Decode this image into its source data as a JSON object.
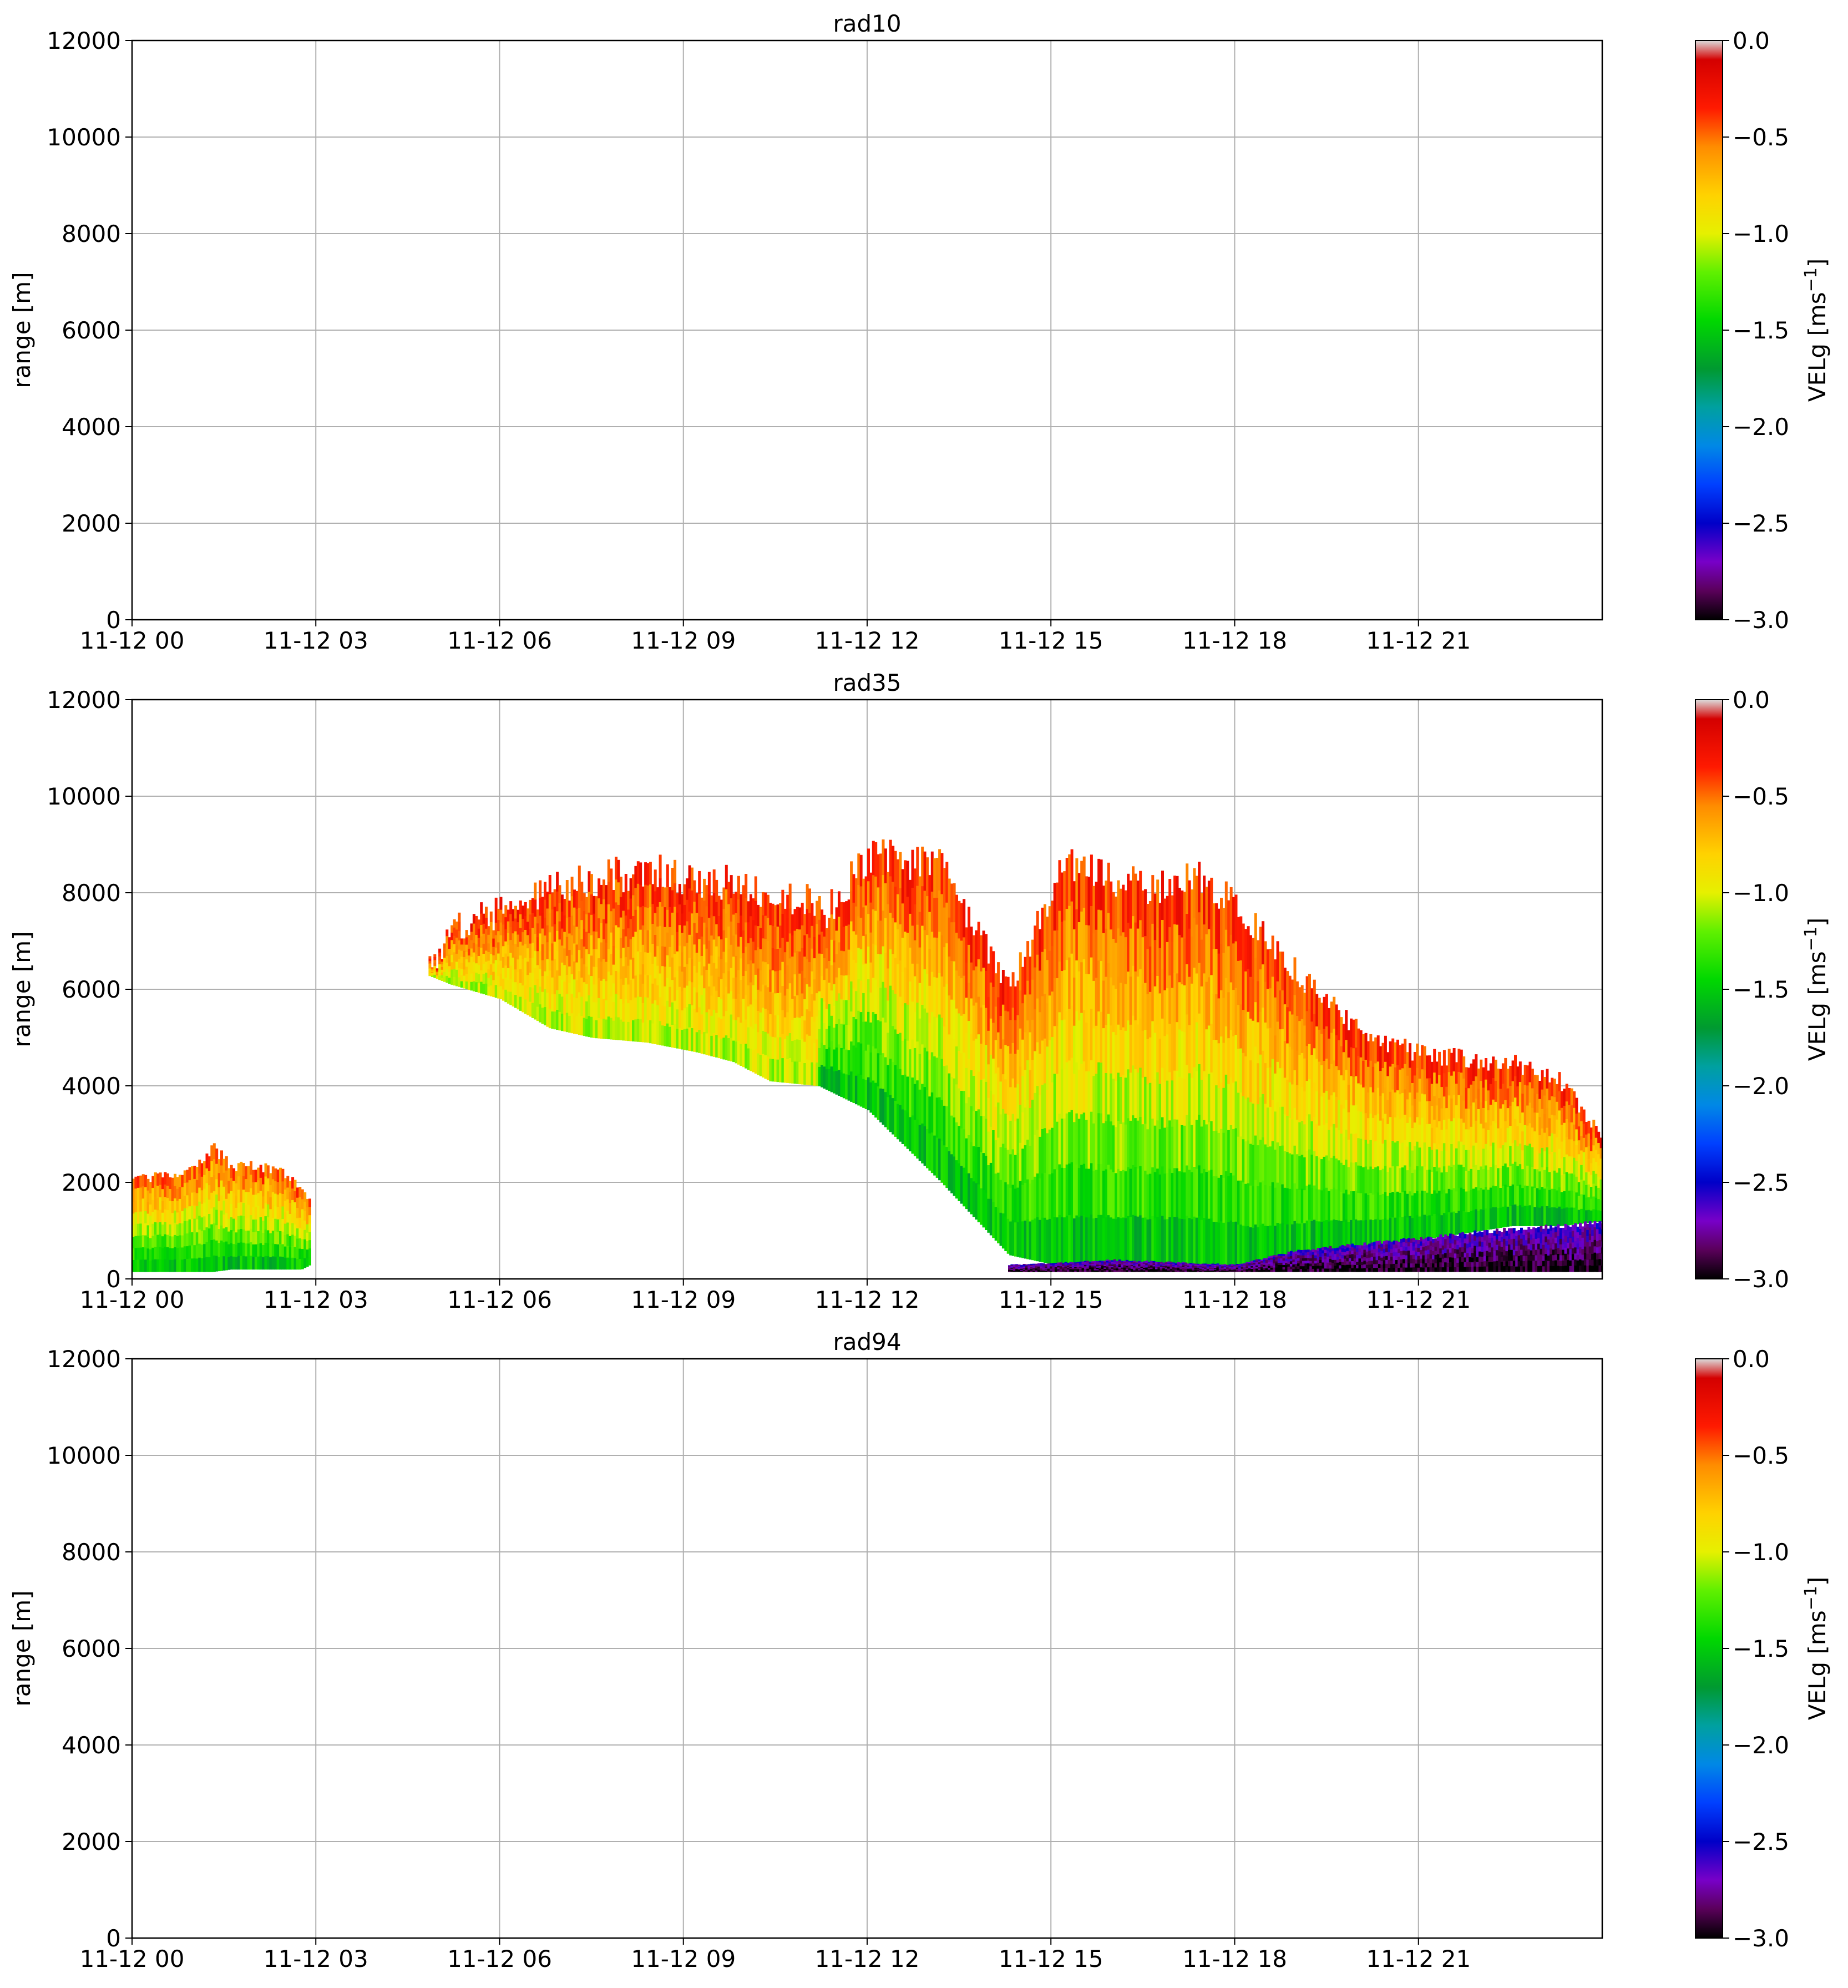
{
  "figure": {
    "colorbar": {
      "label": "VELg [ms",
      "label_sup": "−1",
      "label_end": "]",
      "range": [
        -3.0,
        0.0
      ],
      "ticks": [
        "0.0",
        "−0.5",
        "−1.0",
        "−1.5",
        "−2.0",
        "−2.5",
        "−3.0"
      ],
      "tick_values": [
        0.0,
        -0.5,
        -1.0,
        -1.5,
        -2.0,
        -2.5,
        -3.0
      ],
      "colormap": [
        {
          "v": 0.0,
          "c": "#dcdcdc"
        },
        {
          "v": -0.1,
          "c": "#d40000"
        },
        {
          "v": -0.35,
          "c": "#ff1a00"
        },
        {
          "v": -0.55,
          "c": "#ff8c00"
        },
        {
          "v": -0.8,
          "c": "#ffd200"
        },
        {
          "v": -1.0,
          "c": "#e6f000"
        },
        {
          "v": -1.2,
          "c": "#60f000"
        },
        {
          "v": -1.45,
          "c": "#00d800"
        },
        {
          "v": -1.7,
          "c": "#009a30"
        },
        {
          "v": -1.9,
          "c": "#00a0a0"
        },
        {
          "v": -2.1,
          "c": "#0088e6"
        },
        {
          "v": -2.3,
          "c": "#0040ff"
        },
        {
          "v": -2.5,
          "c": "#0000c8"
        },
        {
          "v": -2.7,
          "c": "#7800c8"
        },
        {
          "v": -2.85,
          "c": "#5a005a"
        },
        {
          "v": -3.0,
          "c": "#000000"
        }
      ]
    }
  },
  "chart_data": [
    {
      "type": "heatmap",
      "title": "rad10",
      "xlabel": "",
      "ylabel": "range [m]",
      "xlim_hours": [
        0,
        24
      ],
      "ylim": [
        0,
        12000
      ],
      "x_ticks": [
        0,
        3,
        6,
        9,
        12,
        15,
        18,
        21
      ],
      "x_tick_labels": [
        "11-12 00",
        "11-12 03",
        "11-12 06",
        "11-12 09",
        "11-12 12",
        "11-12 15",
        "11-12 18",
        "11-12 21"
      ],
      "y_ticks": [
        0,
        2000,
        4000,
        6000,
        8000,
        10000,
        12000
      ],
      "y_tick_labels": [
        "0",
        "2000",
        "4000",
        "6000",
        "8000",
        "10000",
        "12000"
      ],
      "grid": true,
      "has_data": false,
      "regions": []
    },
    {
      "type": "heatmap",
      "title": "rad35",
      "xlabel": "",
      "ylabel": "range [m]",
      "xlim_hours": [
        0,
        24
      ],
      "ylim": [
        0,
        12000
      ],
      "x_ticks": [
        0,
        3,
        6,
        9,
        12,
        15,
        18,
        21
      ],
      "x_tick_labels": [
        "11-12 00",
        "11-12 03",
        "11-12 06",
        "11-12 09",
        "11-12 12",
        "11-12 15",
        "11-12 18",
        "11-12 21"
      ],
      "y_ticks": [
        0,
        2000,
        4000,
        6000,
        8000,
        10000,
        12000
      ],
      "y_tick_labels": [
        "0",
        "2000",
        "4000",
        "6000",
        "8000",
        "10000",
        "12000"
      ],
      "grid": true,
      "has_data": true,
      "regions": [
        {
          "name": "early-low-cloud",
          "hours": [
            0.0,
            0.5,
            1.0,
            1.3,
            1.6,
            2.0,
            2.4,
            2.75,
            2.9
          ],
          "top_m": [
            2100,
            2200,
            2300,
            2800,
            2400,
            2400,
            2300,
            1900,
            1600
          ],
          "bottom_m": [
            150,
            150,
            150,
            150,
            200,
            200,
            200,
            200,
            300
          ],
          "velocity_top": -0.4,
          "velocity_bottom": -1.6
        },
        {
          "name": "mid-level-cloud",
          "hours": [
            4.8,
            5.2,
            6.0,
            6.8,
            7.5,
            8.4,
            9.2,
            9.8,
            10.4,
            11.2
          ],
          "top_m": [
            6500,
            7500,
            7800,
            8300,
            8500,
            8700,
            8500,
            8400,
            8200,
            8000
          ],
          "bottom_m": [
            6300,
            6100,
            5800,
            5200,
            5000,
            4900,
            4700,
            4500,
            4100,
            4000
          ],
          "velocity_top": -0.3,
          "velocity_bottom": -1.1
        },
        {
          "name": "main-cloud-system",
          "hours": [
            11.2,
            12.0,
            13.2,
            14.3,
            15.2,
            16.5,
            17.5,
            18.3,
            19.2,
            20.3,
            21.5,
            22.5,
            23.3,
            24.0
          ],
          "top_m": [
            7600,
            9000,
            8800,
            6100,
            8900,
            8300,
            8500,
            7500,
            6200,
            5000,
            4700,
            4600,
            4200,
            3000
          ],
          "bottom_m": [
            4000,
            3500,
            2000,
            500,
            250,
            300,
            250,
            200,
            500,
            700,
            900,
            1100,
            1100,
            1200
          ],
          "velocity_top": -0.3,
          "velocity_bottom": -1.6
        },
        {
          "name": "surface-fallstreak",
          "hours": [
            14.3,
            16.0,
            18.0,
            19.0,
            20.5,
            22.0,
            24.0
          ],
          "top_m": [
            300,
            400,
            300,
            600,
            800,
            1000,
            1200
          ],
          "bottom_m": [
            150,
            150,
            150,
            150,
            150,
            150,
            150
          ],
          "velocity_top": -2.6,
          "velocity_bottom": -3.0
        }
      ]
    },
    {
      "type": "heatmap",
      "title": "rad94",
      "xlabel": "",
      "ylabel": "range [m]",
      "xlim_hours": [
        0,
        24
      ],
      "ylim": [
        0,
        12000
      ],
      "x_ticks": [
        0,
        3,
        6,
        9,
        12,
        15,
        18,
        21
      ],
      "x_tick_labels": [
        "11-12 00",
        "11-12 03",
        "11-12 06",
        "11-12 09",
        "11-12 12",
        "11-12 15",
        "11-12 18",
        "11-12 21"
      ],
      "y_ticks": [
        0,
        2000,
        4000,
        6000,
        8000,
        10000,
        12000
      ],
      "y_tick_labels": [
        "0",
        "2000",
        "4000",
        "6000",
        "8000",
        "10000",
        "12000"
      ],
      "grid": true,
      "has_data": false,
      "regions": []
    }
  ]
}
